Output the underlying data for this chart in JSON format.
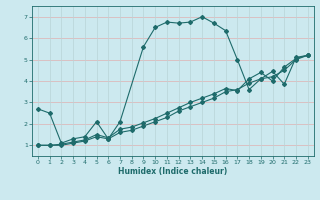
{
  "title": "",
  "xlabel": "Humidex (Indice chaleur)",
  "bg_color": "#cce9ef",
  "line_color": "#1e6b6b",
  "xlim": [
    -0.5,
    23.5
  ],
  "ylim": [
    0.5,
    7.5
  ],
  "xticks": [
    0,
    1,
    2,
    3,
    4,
    5,
    6,
    7,
    8,
    9,
    10,
    11,
    12,
    13,
    14,
    15,
    16,
    17,
    18,
    19,
    20,
    21,
    22,
    23
  ],
  "yticks": [
    1,
    2,
    3,
    4,
    5,
    6,
    7
  ],
  "lines": [
    {
      "x": [
        0,
        1,
        2,
        3,
        4,
        5,
        6,
        7,
        9,
        10,
        11,
        12,
        13,
        14,
        15,
        16,
        17,
        18,
        19,
        20,
        21,
        22,
        23
      ],
      "y": [
        2.7,
        2.5,
        1.1,
        1.3,
        1.4,
        2.1,
        1.3,
        2.1,
        5.6,
        6.5,
        6.75,
        6.7,
        6.75,
        7.0,
        6.7,
        6.35,
        5.0,
        3.6,
        4.1,
        4.45,
        3.85,
        5.1,
        5.2
      ]
    },
    {
      "x": [
        0,
        1,
        2,
        3,
        4,
        5,
        6,
        7,
        8,
        9,
        10,
        11,
        12,
        13,
        14,
        15,
        16,
        17,
        18,
        19,
        20,
        21,
        22,
        23
      ],
      "y": [
        1.0,
        1.0,
        1.0,
        1.1,
        1.2,
        1.4,
        1.3,
        1.6,
        1.7,
        1.9,
        2.1,
        2.3,
        2.6,
        2.8,
        3.0,
        3.2,
        3.5,
        3.6,
        3.9,
        4.1,
        4.2,
        4.5,
        5.0,
        5.2
      ]
    },
    {
      "x": [
        0,
        1,
        2,
        3,
        4,
        5,
        6,
        7,
        8,
        9,
        10,
        11,
        12,
        13,
        14,
        15,
        16,
        17,
        18,
        19,
        20,
        21,
        22,
        23
      ],
      "y": [
        1.0,
        1.0,
        1.05,
        1.15,
        1.25,
        1.5,
        1.35,
        1.75,
        1.85,
        2.05,
        2.25,
        2.5,
        2.75,
        3.0,
        3.2,
        3.4,
        3.65,
        3.55,
        4.1,
        4.4,
        4.0,
        4.65,
        5.05,
        5.2
      ]
    }
  ]
}
